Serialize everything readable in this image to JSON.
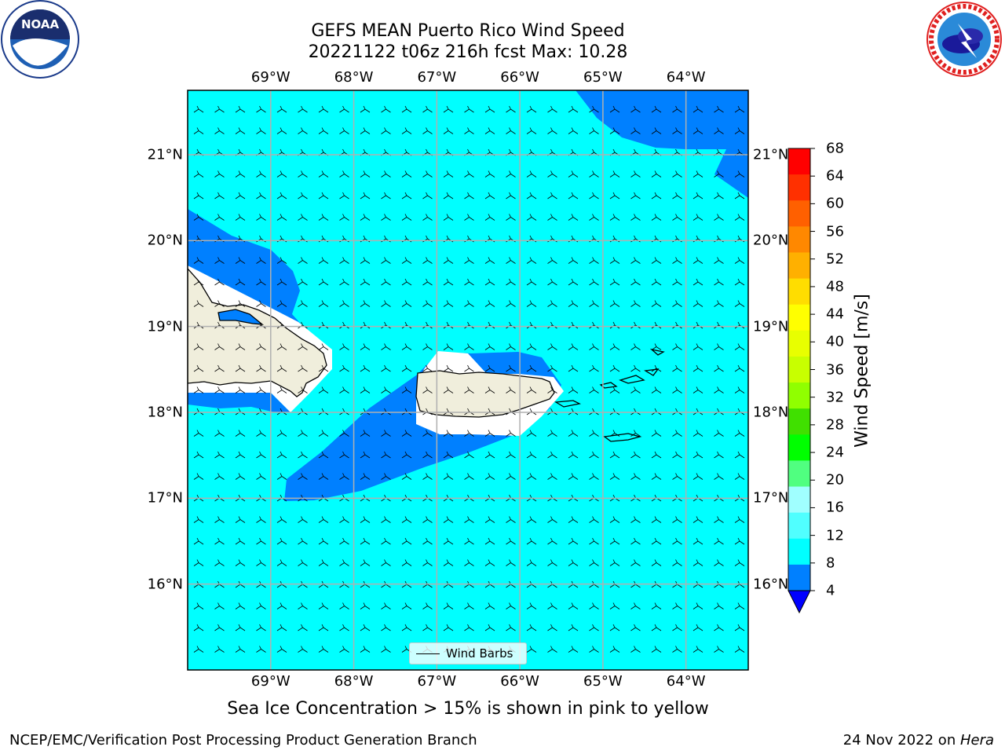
{
  "title": {
    "line1": "GEFS MEAN Puerto Rico Wind Speed",
    "line2": "20221122 t06z 216h fcst   Max: 10.28"
  },
  "map": {
    "lon_range": [
      -70.0,
      -63.25
    ],
    "lat_range": [
      15.0,
      21.75
    ],
    "lon_ticks": [
      "69°W",
      "68°W",
      "67°W",
      "66°W",
      "65°W",
      "64°W"
    ],
    "lon_tick_values": [
      -69,
      -68,
      -67,
      -66,
      -65,
      -64
    ],
    "lat_ticks": [
      "21°N",
      "20°N",
      "19°N",
      "18°N",
      "17°N",
      "16°N"
    ],
    "lat_tick_values": [
      21,
      20,
      19,
      18,
      17,
      16
    ],
    "grid": true,
    "colors": {
      "ocean_8_12": "#00ffff",
      "ocean_4_8": "#0080ff",
      "land": "#f0eedc"
    }
  },
  "colorbar": {
    "label": "Wind Speed [m/s]",
    "ticks": [
      "68",
      "64",
      "60",
      "56",
      "52",
      "48",
      "44",
      "40",
      "36",
      "32",
      "28",
      "24",
      "20",
      "16",
      "12",
      "8",
      "4"
    ],
    "colors": [
      "#ff0000",
      "#ff3000",
      "#ff6000",
      "#ff8800",
      "#ffb000",
      "#ffdd00",
      "#ffff00",
      "#e8ff00",
      "#c8ff00",
      "#90ff00",
      "#40e000",
      "#00ff00",
      "#50ff80",
      "#a0ffff",
      "#50ffff",
      "#00ffff",
      "#0080ff"
    ],
    "extend_color": "#0000ff"
  },
  "legend": {
    "label": "Wind Barbs"
  },
  "caption": "Sea Ice Concentration > 15% is shown in pink to yellow",
  "footer": {
    "left": "NCEP/EMC/Verification Post Processing Product Generation Branch",
    "right_date": "24 Nov 2022 on ",
    "right_host": "Hera"
  },
  "logos": {
    "left": "noaa-logo",
    "right": "nws-logo"
  }
}
